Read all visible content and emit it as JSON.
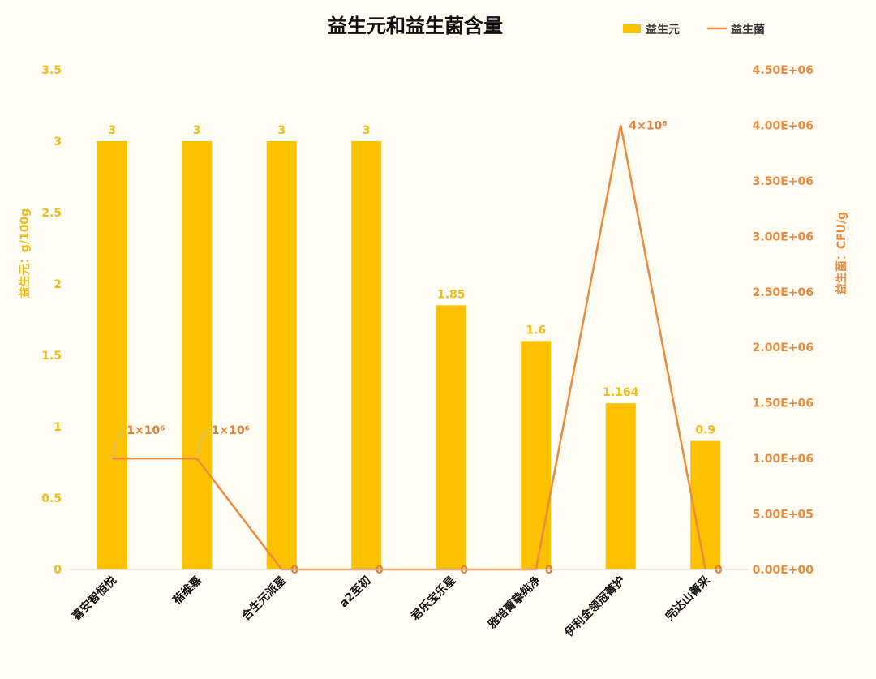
{
  "chart_data": {
    "type": "bar",
    "title": "益生元和益生菌含量",
    "categories": [
      "喜安智恒悦",
      "蓓维嘉",
      "合生元派星",
      "a2至初",
      "君乐宝乐星",
      "雅培菁挚纯净",
      "伊利金领冠菁护",
      "完达山菁采"
    ],
    "series": [
      {
        "name": "益生元",
        "type": "bar",
        "axis": "left",
        "color": "#fcc200",
        "values": [
          3,
          3,
          3,
          3,
          1.85,
          1.6,
          1.164,
          0.9
        ],
        "labels": [
          "3",
          "3",
          "3",
          "3",
          "1.85",
          "1.6",
          "1.164",
          "0.9"
        ]
      },
      {
        "name": "益生菌",
        "type": "line",
        "axis": "right",
        "color": "#ec8a3e",
        "values": [
          1000000,
          1000000,
          0,
          0,
          0,
          0,
          4000000,
          0
        ],
        "labels": [
          "1×10⁶",
          "1×10⁶",
          "0",
          "0",
          "0",
          "0",
          "4×10⁶",
          "0"
        ]
      }
    ],
    "left_axis": {
      "label": "益生元：g/100g",
      "ylim": [
        0,
        3.5
      ],
      "ticks": [
        0,
        0.5,
        1,
        1.5,
        2,
        2.5,
        3,
        3.5
      ],
      "tick_labels": [
        "0",
        "0.5",
        "1",
        "1.5",
        "2",
        "2.5",
        "3",
        "3.5"
      ]
    },
    "right_axis": {
      "label": "益生菌：CFU/g",
      "ylim": [
        0,
        4500000
      ],
      "ticks": [
        0,
        500000,
        1000000,
        1500000,
        2000000,
        2500000,
        3000000,
        3500000,
        4000000,
        4500000
      ],
      "tick_labels": [
        "0.00E+00",
        "5.00E+05",
        "1.00E+06",
        "1.50E+06",
        "2.00E+06",
        "2.50E+06",
        "3.00E+06",
        "3.50E+06",
        "4.00E+06",
        "4.50E+06"
      ]
    },
    "legend": {
      "position": "top-right",
      "entries": [
        "益生元",
        "益生菌"
      ]
    },
    "grid": false
  }
}
